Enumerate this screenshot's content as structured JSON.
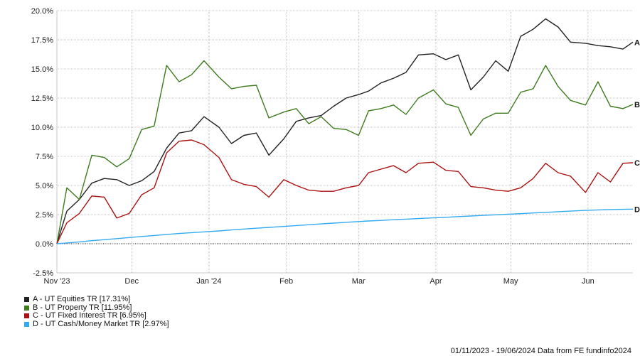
{
  "chart_data": {
    "type": "line",
    "ylim": [
      -2.5,
      20
    ],
    "y_ticks": [
      "20.0%",
      "17.5%",
      "15.0%",
      "12.5%",
      "10.0%",
      "7.5%",
      "5.0%",
      "2.5%",
      "0.0%",
      "-2.5%"
    ],
    "y_tick_values": [
      20,
      17.5,
      15,
      12.5,
      10,
      7.5,
      5,
      2.5,
      0,
      -2.5
    ],
    "x_range": [
      "2023-11-01",
      "2024-06-19"
    ],
    "x_ticks": [
      {
        "label": "Nov '23",
        "date": "2023-11-01"
      },
      {
        "label": "Dec",
        "date": "2023-12-01"
      },
      {
        "label": "Jan '24",
        "date": "2024-01-01"
      },
      {
        "label": "Feb",
        "date": "2024-02-01"
      },
      {
        "label": "Mar",
        "date": "2024-03-01"
      },
      {
        "label": "Apr",
        "date": "2024-04-01"
      },
      {
        "label": "May",
        "date": "2024-05-01"
      },
      {
        "label": "Jun",
        "date": "2024-06-01"
      }
    ],
    "grid": true,
    "zero_line": "dotted",
    "legend_placement": "bottom-left",
    "x": [
      "2023-11-01",
      "2023-11-05",
      "2023-11-10",
      "2023-11-15",
      "2023-11-20",
      "2023-11-25",
      "2023-11-30",
      "2023-12-05",
      "2023-12-10",
      "2023-12-15",
      "2023-12-20",
      "2023-12-25",
      "2023-12-30",
      "2024-01-05",
      "2024-01-10",
      "2024-01-15",
      "2024-01-20",
      "2024-01-25",
      "2024-01-31",
      "2024-02-05",
      "2024-02-10",
      "2024-02-15",
      "2024-02-20",
      "2024-02-25",
      "2024-03-01",
      "2024-03-05",
      "2024-03-10",
      "2024-03-15",
      "2024-03-20",
      "2024-03-25",
      "2024-03-31",
      "2024-04-05",
      "2024-04-10",
      "2024-04-15",
      "2024-04-20",
      "2024-04-25",
      "2024-04-30",
      "2024-05-05",
      "2024-05-10",
      "2024-05-15",
      "2024-05-20",
      "2024-05-25",
      "2024-05-31",
      "2024-06-05",
      "2024-06-10",
      "2024-06-15",
      "2024-06-19"
    ],
    "series": [
      {
        "name": "A - UT Equities TR [17.31%]",
        "end_label": "A",
        "color": "#222222",
        "values": [
          0,
          2.8,
          3.8,
          5.2,
          5.6,
          5.5,
          5.0,
          5.4,
          6.2,
          8.2,
          9.5,
          9.7,
          10.9,
          10.0,
          8.6,
          9.3,
          9.5,
          7.6,
          9.0,
          10.5,
          10.8,
          11.0,
          11.8,
          12.5,
          12.8,
          13.1,
          13.8,
          14.2,
          14.7,
          16.2,
          16.3,
          15.8,
          16.2,
          13.2,
          14.3,
          15.7,
          14.8,
          17.8,
          18.4,
          19.3,
          18.6,
          17.3,
          17.2,
          17.0,
          16.9,
          16.7,
          17.3
        ]
      },
      {
        "name": "B - UT Property TR [11.95%]",
        "end_label": "B",
        "color": "#3f7a1f",
        "values": [
          0,
          4.8,
          3.8,
          7.6,
          7.4,
          6.6,
          7.3,
          9.8,
          10.1,
          15.3,
          13.9,
          14.5,
          15.7,
          14.3,
          13.3,
          13.5,
          13.6,
          10.8,
          11.3,
          11.6,
          10.3,
          10.9,
          9.9,
          9.8,
          9.3,
          11.4,
          11.6,
          11.9,
          11.1,
          12.5,
          13.2,
          12.0,
          11.7,
          9.3,
          10.7,
          11.2,
          11.2,
          13.0,
          13.3,
          15.3,
          13.5,
          12.3,
          11.9,
          13.9,
          11.8,
          11.6,
          11.95
        ]
      },
      {
        "name": "C - UT Fixed Interest TR [6.95%]",
        "end_label": "C",
        "color": "#aa1111",
        "values": [
          0,
          1.8,
          2.6,
          4.1,
          4.0,
          2.2,
          2.6,
          4.2,
          4.8,
          7.8,
          8.8,
          8.9,
          8.5,
          7.4,
          5.5,
          5.1,
          4.9,
          4.0,
          5.5,
          5.0,
          4.6,
          4.5,
          4.5,
          4.8,
          5.0,
          6.1,
          6.4,
          6.7,
          6.1,
          6.9,
          7.0,
          6.3,
          6.2,
          4.9,
          4.8,
          4.6,
          4.5,
          4.8,
          5.6,
          6.9,
          6.1,
          5.8,
          4.4,
          6.1,
          5.3,
          6.9,
          6.95
        ]
      },
      {
        "name": "D - UT Cash/Money Market TR [2.97%]",
        "end_label": "D",
        "color": "#33aaee",
        "values": [
          0,
          0.07,
          0.16,
          0.26,
          0.35,
          0.44,
          0.53,
          0.62,
          0.71,
          0.8,
          0.88,
          0.95,
          1.02,
          1.1,
          1.18,
          1.26,
          1.33,
          1.4,
          1.48,
          1.56,
          1.63,
          1.7,
          1.77,
          1.84,
          1.9,
          1.95,
          2.0,
          2.06,
          2.11,
          2.16,
          2.22,
          2.27,
          2.33,
          2.38,
          2.43,
          2.48,
          2.53,
          2.58,
          2.64,
          2.69,
          2.75,
          2.8,
          2.86,
          2.9,
          2.93,
          2.95,
          2.97
        ]
      }
    ]
  },
  "footer": {
    "date_range": "01/11/2023 - 19/06/2024",
    "source": "Data from FE fundinfo2024"
  }
}
